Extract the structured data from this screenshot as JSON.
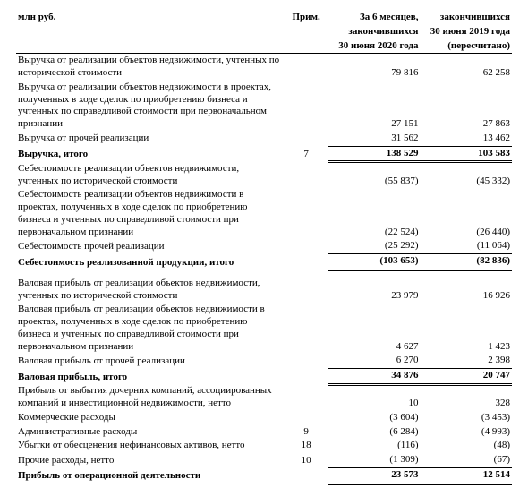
{
  "header": {
    "unit_label": "млн руб.",
    "note_label": "Прим.",
    "col1_lines": [
      "За 6 месяцев,",
      "закончившихся",
      "30 июня 2020 года"
    ],
    "col2_lines": [
      "закончившихся",
      "30 июня 2019 года",
      "(пересчитано)"
    ]
  },
  "rows": [
    {
      "desc": "Выручка от реализации объектов недвижимости, учтенных по исторической стоимости",
      "note": "",
      "c1": "79 816",
      "c2": "62 258"
    },
    {
      "desc": "Выручка от реализации объектов недвижимости в проектах, полученных в ходе сделок по приобретению бизнеса и учтенных по справедливой стоимости при первоначальном признании",
      "note": "",
      "c1": "27 151",
      "c2": "27 863"
    },
    {
      "desc": "Выручка от прочей реализации",
      "note": "",
      "c1": "31 562",
      "c2": "13 462",
      "underline": true
    },
    {
      "desc": "Выручка, итого",
      "note": "7",
      "c1": "138 529",
      "c2": "103 583",
      "bold": true,
      "double_top_bottom": true
    },
    {
      "desc": "Себестоимость реализации объектов недвижимости, учтенных по исторической стоимости",
      "note": "",
      "c1": "(55 837)",
      "c2": "(45 332)"
    },
    {
      "desc": "Себестоимость реализации объектов недвижимости в проектах, полученных в ходе сделок по приобретению бизнеса и учтенных по справедливой стоимости при первоначальном признании",
      "note": "",
      "c1": "(22 524)",
      "c2": "(26 440)"
    },
    {
      "desc": "Себестоимость прочей реализации",
      "note": "",
      "c1": "(25 292)",
      "c2": "(11 064)",
      "underline": true
    },
    {
      "desc": "Себестоимость реализованной продукции, итого",
      "note": "",
      "c1": "(103 653)",
      "c2": "(82 836)",
      "bold": true,
      "double_top_bottom": true
    },
    {
      "gap": true
    },
    {
      "desc": "Валовая прибыль от реализации объектов недвижимости, учтенных по исторической стоимости",
      "note": "",
      "c1": "23 979",
      "c2": "16 926"
    },
    {
      "desc": "Валовая прибыль от реализации объектов недвижимости в проектах, полученных в ходе сделок по приобретению бизнеса и учтенных по справедливой стоимости при первоначальном признании",
      "note": "",
      "c1": "4 627",
      "c2": "1 423"
    },
    {
      "desc": "Валовая прибыль от прочей реализации",
      "note": "",
      "c1": "6 270",
      "c2": "2 398",
      "underline": true
    },
    {
      "desc": "Валовая прибыль, итого",
      "note": "",
      "c1": "34 876",
      "c2": "20 747",
      "bold": true,
      "double_top_bottom": true
    },
    {
      "desc": "Прибыль от выбытия дочерних компаний, ассоциированных компаний и инвестиционной недвижимости, нетто",
      "note": "",
      "c1": "10",
      "c2": "328"
    },
    {
      "desc": "Коммерческие расходы",
      "note": "",
      "c1": "(3 604)",
      "c2": "(3 453)"
    },
    {
      "desc": "Административные расходы",
      "note": "9",
      "c1": "(6 284)",
      "c2": "(4 993)"
    },
    {
      "desc": "Убытки от обесценения нефинансовых активов, нетто",
      "note": "18",
      "c1": "(116)",
      "c2": "(48)"
    },
    {
      "desc": "Прочие расходы, нетто",
      "note": "10",
      "c1": "(1 309)",
      "c2": "(67)",
      "underline": true
    },
    {
      "desc": "Прибыль от операционной деятельности",
      "note": "",
      "c1": "23 573",
      "c2": "12 514",
      "bold": true,
      "double_top_bottom": true
    }
  ]
}
